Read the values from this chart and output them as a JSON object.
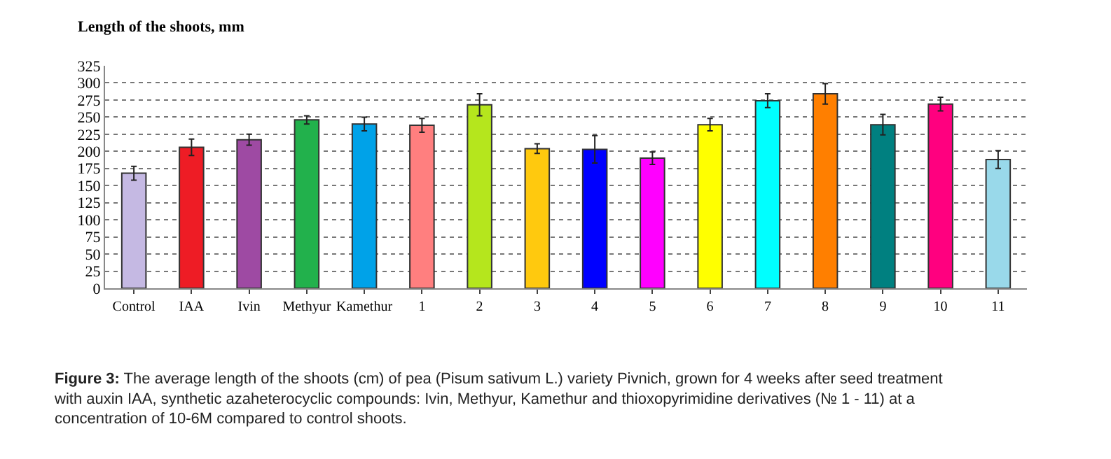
{
  "chart_data": {
    "type": "bar",
    "title": "Length of the shoots, mm",
    "categories": [
      "Control",
      "IAA",
      "Ivin",
      "Methyur",
      "Kamethur",
      "1",
      "2",
      "3",
      "4",
      "5",
      "6",
      "7",
      "8",
      "9",
      "10",
      "11"
    ],
    "values": [
      168,
      206,
      217,
      246,
      240,
      238,
      268,
      204,
      203,
      190,
      239,
      274,
      284,
      239,
      269,
      188
    ],
    "errors": [
      10,
      12,
      8,
      6,
      10,
      10,
      16,
      7,
      20,
      9,
      9,
      10,
      15,
      15,
      10,
      13
    ],
    "colors": [
      "#c5b9e3",
      "#ee1c25",
      "#9e4aa3",
      "#22b14c",
      "#00a2e8",
      "#ff7f7f",
      "#b5e61d",
      "#ffc90e",
      "#0000ff",
      "#ff00ff",
      "#ffff00",
      "#00ffff",
      "#ff7f00",
      "#008080",
      "#ff007f",
      "#99d9ea"
    ],
    "ylim": [
      0,
      325
    ],
    "yticks": [
      0,
      25,
      50,
      75,
      100,
      125,
      150,
      175,
      200,
      225,
      250,
      275,
      300,
      325
    ],
    "grid": "y",
    "legend": false,
    "annotations": [
      "Figure 3: The average length of the shoots (cm) of pea (Pisum sativum L.) variety Pivnich, grown for 4 weeks after seed treatment with auxin IAA, synthetic azaheterocyclic compounds: Ivin, Methyur, Kamethur and thioxopyrimidine derivatives (№ 1 - 11) at a concentration of 10-6M compared to control shoots."
    ]
  }
}
